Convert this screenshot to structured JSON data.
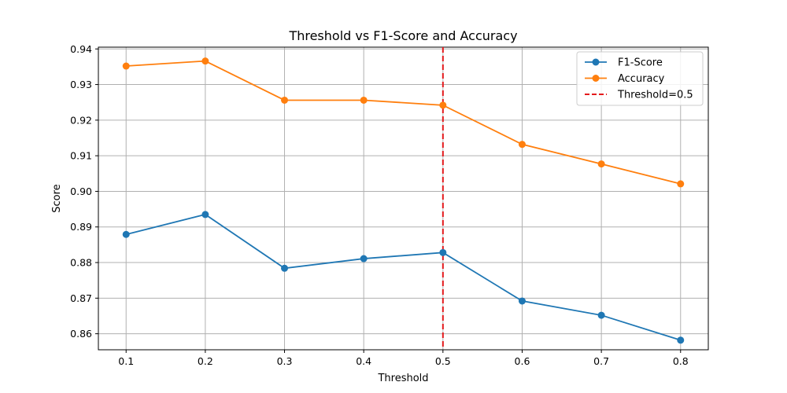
{
  "chart_data": {
    "type": "line",
    "title": "Threshold vs F1-Score and Accuracy",
    "xlabel": "Threshold",
    "ylabel": "Score",
    "x": [
      0.1,
      0.2,
      0.3,
      0.4,
      0.5,
      0.6,
      0.7,
      0.8
    ],
    "xlim": [
      0.065,
      0.835
    ],
    "ylim": [
      0.8555,
      0.9405
    ],
    "xticks": [
      0.1,
      0.2,
      0.3,
      0.4,
      0.5,
      0.6,
      0.7,
      0.8
    ],
    "xtick_labels": [
      "0.1",
      "0.2",
      "0.3",
      "0.4",
      "0.5",
      "0.6",
      "0.7",
      "0.8"
    ],
    "yticks": [
      0.86,
      0.87,
      0.88,
      0.89,
      0.9,
      0.91,
      0.92,
      0.93,
      0.94
    ],
    "ytick_labels": [
      "0.86",
      "0.87",
      "0.88",
      "0.89",
      "0.90",
      "0.91",
      "0.92",
      "0.93",
      "0.94"
    ],
    "grid": true,
    "legend_position": "top-right",
    "series": [
      {
        "name": "F1-Score",
        "color": "#1f77b4",
        "marker": "circle",
        "values": [
          0.8879,
          0.8935,
          0.8784,
          0.8811,
          0.8828,
          0.8692,
          0.8652,
          0.8582
        ]
      },
      {
        "name": "Accuracy",
        "color": "#ff7f0e",
        "marker": "circle",
        "values": [
          0.9352,
          0.9366,
          0.9256,
          0.9256,
          0.9242,
          0.9132,
          0.9077,
          0.9021
        ]
      }
    ],
    "reference_lines": [
      {
        "name": "Threshold=0.5",
        "orientation": "vertical",
        "x": 0.5,
        "color": "#e41a1c",
        "style": "dashed"
      }
    ]
  }
}
